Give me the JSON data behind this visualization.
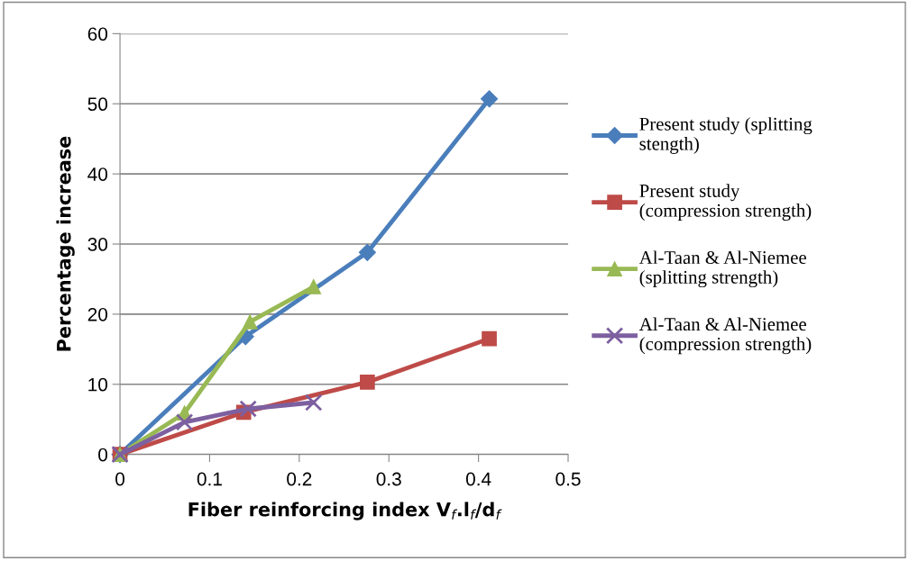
{
  "chart_data": {
    "type": "line",
    "xlabel": "Fiber reinforcing index V$_{f}$.l$_{f}$/d$_{f}$",
    "ylabel": "Percentage increase",
    "xlim": [
      0,
      0.5
    ],
    "xticks": [
      0,
      0.1,
      0.2,
      0.3,
      0.4,
      0.5
    ],
    "ylim": [
      0,
      60
    ],
    "yticks": [
      0,
      10,
      20,
      30,
      40,
      50,
      60
    ],
    "grid": "y",
    "legend": "right",
    "series": [
      {
        "name": "Present study (splitting\nstength)",
        "color": "#4a7ebb",
        "marker": "diamond",
        "x": [
          0,
          0.14,
          0.276,
          0.412
        ],
        "values": [
          0,
          16.8,
          28.8,
          50.7
        ]
      },
      {
        "name": "Present study\n(compression strength)",
        "color": "#be4b48",
        "marker": "square",
        "x": [
          0,
          0.138,
          0.276,
          0.412
        ],
        "values": [
          0,
          6.0,
          10.3,
          16.5
        ]
      },
      {
        "name": "Al-Taan & Al-Niemee\n(splitting strength)",
        "color": "#98b954",
        "marker": "triangle",
        "x": [
          0,
          0.072,
          0.145,
          0.216
        ],
        "values": [
          0,
          5.9,
          18.9,
          23.9
        ]
      },
      {
        "name": "Al-Taan & Al-Niemee\n(compression strength)",
        "color": "#7d60a0",
        "marker": "cross",
        "x": [
          0,
          0.072,
          0.143,
          0.216
        ],
        "values": [
          0,
          4.6,
          6.5,
          7.4
        ]
      }
    ]
  }
}
